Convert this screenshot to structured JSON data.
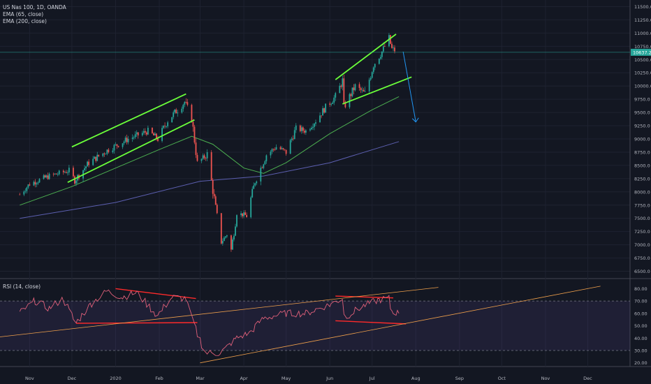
{
  "legend": {
    "symbol": "US Nas 100, 1D, OANDA",
    "ema65": "EMA (65, close)",
    "ema200": "EMA (200, close)",
    "rsi": "RSI (14, close)"
  },
  "colors": {
    "background": "#131722",
    "up_candle": "#26a69a",
    "down_candle": "#ef5350",
    "ema65": "#4caf50",
    "ema200": "#5c5fb0",
    "trendline_green": "#6bff3a",
    "trendline_red": "#ff2a2a",
    "arrow": "#2196f3",
    "rsi_line": "#e0607a",
    "rsi_trend": "#f0a04b",
    "last_price_bg": "#26a69a"
  },
  "last_price_label": "10637.2",
  "chart_data": [
    {
      "type": "candlestick",
      "title": "US Nas 100, 1D, OANDA",
      "ylabel": "",
      "xlabel": "",
      "ylim": [
        6375,
        11625
      ],
      "y_ticks": [
        "11500.0",
        "11250.0",
        "11000.0",
        "10750.0",
        "10500.0",
        "10250.0",
        "10000.0",
        "9750.0",
        "9500.0",
        "9250.0",
        "9000.0",
        "8750.0",
        "8500.0",
        "8250.0",
        "8000.0",
        "7750.0",
        "7500.0",
        "7250.0",
        "7000.0",
        "6750.0",
        "6500.0"
      ],
      "x_ticks": [
        "Nov",
        "Dec",
        "2020",
        "Feb",
        "Mar",
        "Apr",
        "May",
        "Jun",
        "Jul",
        "Aug",
        "Sep",
        "Oct",
        "Nov",
        "Dec"
      ],
      "close_path": [
        [
          "2019-10-25",
          7950
        ],
        [
          "2019-11-01",
          8150
        ],
        [
          "2019-11-15",
          8300
        ],
        [
          "2019-11-29",
          8400
        ],
        [
          "2019-12-03",
          8220
        ],
        [
          "2019-12-13",
          8550
        ],
        [
          "2019-12-27",
          8800
        ],
        [
          "2020-01-10",
          9000
        ],
        [
          "2020-01-24",
          9150
        ],
        [
          "2020-01-31",
          9000
        ],
        [
          "2020-02-07",
          9350
        ],
        [
          "2020-02-19",
          9700
        ],
        [
          "2020-02-24",
          9400
        ],
        [
          "2020-02-28",
          8550
        ],
        [
          "2020-03-06",
          8700
        ],
        [
          "2020-03-12",
          7700
        ],
        [
          "2020-03-16",
          7050
        ],
        [
          "2020-03-20",
          7200
        ],
        [
          "2020-03-23",
          6900
        ],
        [
          "2020-03-27",
          7600
        ],
        [
          "2020-04-03",
          7550
        ],
        [
          "2020-04-09",
          8200
        ],
        [
          "2020-04-17",
          8700
        ],
        [
          "2020-04-24",
          8850
        ],
        [
          "2020-05-01",
          8750
        ],
        [
          "2020-05-08",
          9200
        ],
        [
          "2020-05-15",
          9150
        ],
        [
          "2020-05-22",
          9350
        ],
        [
          "2020-05-29",
          9600
        ],
        [
          "2020-06-05",
          9800
        ],
        [
          "2020-06-10",
          10100
        ],
        [
          "2020-06-11",
          9600
        ],
        [
          "2020-06-19",
          10000
        ],
        [
          "2020-06-26",
          9850
        ],
        [
          "2020-07-02",
          10400
        ],
        [
          "2020-07-08",
          10650
        ],
        [
          "2020-07-13",
          10900
        ],
        [
          "2020-07-15",
          10700
        ],
        [
          "2020-07-20",
          10637
        ]
      ],
      "ema65": [
        [
          "2019-10-25",
          7750
        ],
        [
          "2019-12-01",
          8100
        ],
        [
          "2020-01-01",
          8450
        ],
        [
          "2020-02-01",
          8800
        ],
        [
          "2020-02-24",
          9050
        ],
        [
          "2020-03-10",
          8900
        ],
        [
          "2020-04-01",
          8450
        ],
        [
          "2020-04-15",
          8350
        ],
        [
          "2020-05-01",
          8550
        ],
        [
          "2020-06-01",
          9100
        ],
        [
          "2020-07-01",
          9550
        ],
        [
          "2020-07-20",
          9800
        ]
      ],
      "ema200": [
        [
          "2019-10-25",
          7500
        ],
        [
          "2020-01-01",
          7800
        ],
        [
          "2020-03-01",
          8200
        ],
        [
          "2020-04-15",
          8300
        ],
        [
          "2020-06-01",
          8550
        ],
        [
          "2020-07-20",
          8950
        ]
      ]
    },
    {
      "type": "line",
      "title": "RSI (14, close)",
      "ylim": [
        17,
        87
      ],
      "y_ticks": [
        "80.00",
        "70.00",
        "60.00",
        "50.00",
        "40.00",
        "30.00",
        "20.00"
      ],
      "bands": [
        30,
        70
      ],
      "series": [
        {
          "values": [
            [
              "2019-10-25",
              60
            ],
            [
              "2019-11-05",
              70
            ],
            [
              "2019-11-15",
              64
            ],
            [
              "2019-11-25",
              72
            ],
            [
              "2019-12-04",
              52
            ],
            [
              "2019-12-15",
              68
            ],
            [
              "2019-12-26",
              78
            ],
            [
              "2020-01-06",
              73
            ],
            [
              "2020-01-16",
              77
            ],
            [
              "2020-01-31",
              58
            ],
            [
              "2020-02-10",
              73
            ],
            [
              "2020-02-20",
              72
            ],
            [
              "2020-02-27",
              47
            ],
            [
              "2020-03-05",
              28
            ],
            [
              "2020-03-16",
              28
            ],
            [
              "2020-03-27",
              40
            ],
            [
              "2020-04-05",
              44
            ],
            [
              "2020-04-15",
              56
            ],
            [
              "2020-05-01",
              60
            ],
            [
              "2020-05-15",
              60
            ],
            [
              "2020-06-01",
              67
            ],
            [
              "2020-06-10",
              72
            ],
            [
              "2020-06-12",
              57
            ],
            [
              "2020-06-25",
              66
            ],
            [
              "2020-07-06",
              71
            ],
            [
              "2020-07-13",
              72
            ],
            [
              "2020-07-15",
              62
            ],
            [
              "2020-07-20",
              60
            ]
          ]
        }
      ]
    }
  ]
}
